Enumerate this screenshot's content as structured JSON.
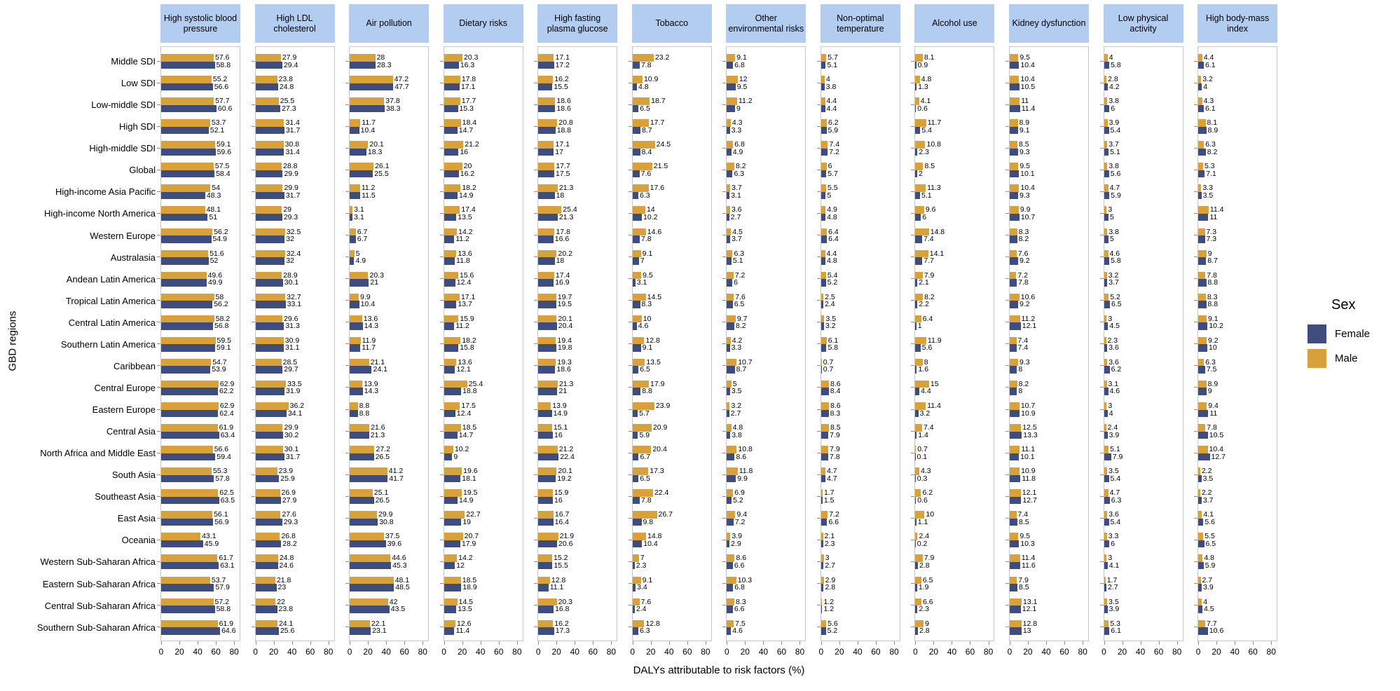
{
  "y_axis_label": "GBD regions",
  "x_axis_label": "DALYs attributable to risk factors (%)",
  "x_ticks": [
    0,
    20,
    40,
    60,
    80
  ],
  "legend": {
    "title": "Sex",
    "items": [
      {
        "label": "Female",
        "color": "#3E4D7D"
      },
      {
        "label": "Male",
        "color": "#D8A13C"
      }
    ]
  },
  "colors": {
    "male": "#D8A13C",
    "female": "#3E4D7D",
    "header_bg": "#B3CDF1",
    "panel_border": "#c6c6c6"
  },
  "chart_data": {
    "type": "bar",
    "orientation": "horizontal",
    "grouping": "grouped",
    "legend_position": "right",
    "xlim": [
      0,
      86
    ],
    "x_ticks": [
      0,
      20,
      40,
      60,
      80
    ],
    "categories": [
      "Middle SDI",
      "Low SDI",
      "Low-middle SDI",
      "High SDI",
      "High-middle SDI",
      "Global",
      "High-income Asia Pacific",
      "High-income North America",
      "Western Europe",
      "Australasia",
      "Andean Latin America",
      "Tropical Latin America",
      "Central Latin America",
      "Southern Latin America",
      "Caribbean",
      "Central Europe",
      "Eastern Europe",
      "Central Asia",
      "North Africa and Middle East",
      "South Asia",
      "Southeast Asia",
      "East Asia",
      "Oceania",
      "Western Sub-Saharan Africa",
      "Eastern Sub-Saharan Africa",
      "Central Sub-Saharan Africa",
      "Southern Sub-Saharan Africa"
    ],
    "panels": [
      {
        "risk": "High systolic blood pressure",
        "male": [
          57.6,
          55.2,
          57.7,
          53.7,
          59.1,
          57.5,
          54,
          48.1,
          56.2,
          51.6,
          49.6,
          58,
          58.2,
          59.5,
          54.7,
          62.9,
          62.9,
          61.9,
          56.6,
          55.3,
          62.5,
          56.1,
          43.1,
          61.7,
          53.7,
          57.2,
          61.9
        ],
        "female": [
          58.8,
          56.6,
          60.6,
          52.1,
          59.6,
          58.4,
          48.3,
          51,
          54.9,
          52,
          49.9,
          56.2,
          56.8,
          59.1,
          53.9,
          62.2,
          62.4,
          63.4,
          59.4,
          57.8,
          63.5,
          56.9,
          45.9,
          63.1,
          57.9,
          58.8,
          64.6
        ]
      },
      {
        "risk": "High LDL cholesterol",
        "male": [
          27.9,
          23.8,
          25.5,
          31.4,
          30.8,
          28.8,
          29.9,
          29,
          32.5,
          32.4,
          28.9,
          32.7,
          29.6,
          30.9,
          28.5,
          33.5,
          36.2,
          29.9,
          30.1,
          23.9,
          26.9,
          27.6,
          26.8,
          24.8,
          21.8,
          22,
          24.1
        ],
        "female": [
          29.4,
          24.8,
          27.3,
          31.7,
          31.4,
          29.9,
          31.7,
          29.3,
          32,
          32,
          30.1,
          33.1,
          31.3,
          31.1,
          29.7,
          31.9,
          34.1,
          30.2,
          31.7,
          25.9,
          27.9,
          29.3,
          28.2,
          24.6,
          23,
          23.8,
          25.6
        ]
      },
      {
        "risk": "Air pollution",
        "male": [
          28,
          47.2,
          37.8,
          11.7,
          20.1,
          26.1,
          11.2,
          3.1,
          6.7,
          5,
          20.3,
          9.9,
          13.6,
          11.9,
          21.1,
          13.9,
          8.8,
          21.6,
          27.2,
          41.2,
          25.1,
          29.9,
          37.5,
          44.6,
          48.1,
          42,
          22.1
        ],
        "female": [
          28.3,
          47.7,
          38.3,
          10.4,
          18.3,
          25.5,
          11.5,
          3.1,
          6.7,
          4.9,
          21,
          10.4,
          14.3,
          11.7,
          24.1,
          14.3,
          8.8,
          21.3,
          26.5,
          41.7,
          26.5,
          30.8,
          39.6,
          45.3,
          48.5,
          43.5,
          23.1
        ]
      },
      {
        "risk": "Dietary risks",
        "male": [
          20.3,
          17.8,
          17.7,
          18.4,
          21.2,
          20,
          18.2,
          17.4,
          14.2,
          13.6,
          15.6,
          17.1,
          15.9,
          18.2,
          13.6,
          25.4,
          17.5,
          18.5,
          10.2,
          19.6,
          19.5,
          22.7,
          20.7,
          14.2,
          18.5,
          14.5,
          12.6
        ],
        "female": [
          16.3,
          17.1,
          15.3,
          14.7,
          16,
          16.2,
          14.9,
          13.5,
          11.2,
          11.8,
          12.4,
          13.7,
          11.2,
          15.8,
          12.1,
          18.8,
          12.4,
          14.7,
          9,
          18.1,
          14.9,
          19,
          17.9,
          12,
          18.9,
          13.5,
          11.4
        ]
      },
      {
        "risk": "High fasting plasma glucose",
        "male": [
          17.1,
          16.2,
          18.6,
          20.8,
          17.1,
          17.7,
          21.3,
          25.4,
          17.8,
          20.2,
          17.4,
          19.7,
          20.1,
          19.4,
          19.3,
          21.3,
          13.9,
          15.1,
          21.2,
          20.1,
          15.9,
          16.7,
          21.9,
          15.2,
          12.8,
          20.3,
          16.2
        ],
        "female": [
          17.2,
          15.5,
          18.6,
          18.8,
          17,
          17.5,
          18,
          21.3,
          16.6,
          18,
          16.9,
          19.5,
          20.4,
          19.8,
          18.6,
          21,
          14.9,
          16,
          22.4,
          19.2,
          16,
          16.4,
          20.6,
          15.5,
          11.1,
          16.8,
          17.3
        ]
      },
      {
        "risk": "Tobacco",
        "male": [
          23.2,
          10.9,
          18.7,
          17.7,
          24.5,
          21.5,
          17.6,
          14,
          14.6,
          9.1,
          9.5,
          14.5,
          10,
          12.8,
          13.5,
          17.9,
          23.9,
          20.9,
          20.4,
          17.3,
          22.4,
          26.7,
          14.8,
          7,
          9.1,
          7.6,
          12.8
        ],
        "female": [
          7.8,
          4.8,
          6.5,
          8.7,
          8.4,
          7.6,
          6.3,
          10.2,
          7.8,
          7,
          3.1,
          8.3,
          4.6,
          9.1,
          6.5,
          8.8,
          5.7,
          5.9,
          6.7,
          6.5,
          7.8,
          9.8,
          10.4,
          2.3,
          3.4,
          2.4,
          6.3
        ]
      },
      {
        "risk": "Other environmental risks",
        "male": [
          9.1,
          12,
          11.2,
          4.3,
          6.8,
          8.2,
          3.7,
          3.6,
          4.5,
          6.3,
          7.2,
          7.6,
          9.7,
          4.2,
          10.7,
          5,
          3.2,
          4.8,
          10.8,
          11.8,
          6.9,
          9.4,
          3.9,
          8.6,
          10.3,
          8.3,
          7.5
        ],
        "female": [
          6.8,
          9.5,
          9,
          3.3,
          4.9,
          6.3,
          3.1,
          2.7,
          3.7,
          5.1,
          6,
          6.5,
          8.2,
          3.3,
          8.7,
          3.5,
          2.7,
          3.8,
          8.6,
          9.9,
          5.2,
          7.2,
          2.9,
          6.6,
          6.8,
          6.6,
          4.6
        ]
      },
      {
        "risk": "Non-optimal temperature",
        "male": [
          5.7,
          4,
          4.4,
          6.2,
          7.4,
          6,
          5.5,
          4.9,
          6.4,
          4.4,
          5.4,
          2.5,
          3.5,
          6.1,
          0.7,
          8.6,
          8.6,
          8.5,
          7.9,
          4.7,
          1.7,
          7.2,
          2.1,
          3,
          2.9,
          1.2,
          5.6
        ],
        "female": [
          5.1,
          3.8,
          4.4,
          5.9,
          7.2,
          5.7,
          5,
          4.8,
          6.4,
          4.8,
          5.2,
          2.4,
          3.2,
          5.8,
          0.7,
          8.4,
          8.3,
          7.9,
          7.8,
          4.7,
          1.5,
          6.6,
          2.3,
          2.7,
          2.8,
          1.2,
          5.2
        ]
      },
      {
        "risk": "Alcohol use",
        "male": [
          8.1,
          4.8,
          4.1,
          11.7,
          10.8,
          8.5,
          11.3,
          9.6,
          14.8,
          14.1,
          7.9,
          8.2,
          6.4,
          11.9,
          8,
          15,
          11.4,
          7.4,
          0.7,
          4.3,
          6.2,
          10,
          2.4,
          7.9,
          6.5,
          6.6,
          9
        ],
        "female": [
          0.9,
          1.3,
          0.6,
          5.4,
          2.3,
          2,
          5.1,
          6,
          7.4,
          7.7,
          2.1,
          2.2,
          1,
          5.6,
          1.6,
          4.4,
          3.2,
          1.4,
          0.1,
          0.3,
          0.6,
          1.1,
          0.2,
          2.8,
          1.9,
          2.3,
          2.8
        ]
      },
      {
        "risk": "Kidney dysfunction",
        "male": [
          9.5,
          10.4,
          11,
          8.9,
          8.5,
          9.5,
          10.4,
          9.9,
          8.3,
          7.6,
          7.2,
          10.6,
          11.2,
          7.4,
          9.3,
          8.2,
          10.7,
          12.5,
          11.1,
          10.9,
          12.1,
          7.4,
          9.5,
          11.4,
          7.9,
          13.1,
          12.8
        ],
        "female": [
          10.4,
          10.5,
          11.4,
          9.1,
          9.3,
          10.1,
          9.3,
          10.7,
          8.2,
          9.2,
          7.8,
          9.2,
          12.1,
          7.4,
          8,
          8,
          10.9,
          13.3,
          10.1,
          11.8,
          12.7,
          8.5,
          10.3,
          11.6,
          8.5,
          12.1,
          13
        ]
      },
      {
        "risk": "Low physical activity",
        "male": [
          4,
          2.8,
          3.8,
          3.9,
          3.7,
          3.8,
          4.7,
          3,
          3.8,
          4.6,
          3.2,
          5.2,
          3,
          2.3,
          3.6,
          3.1,
          3,
          2.4,
          5.1,
          3.5,
          4.7,
          3.6,
          3.3,
          3,
          1.7,
          3.5,
          5.3
        ],
        "female": [
          5.8,
          4.2,
          6,
          5.4,
          5.1,
          5.6,
          5.9,
          5,
          5,
          5.8,
          3.7,
          6.5,
          4.5,
          3.6,
          6.2,
          4.6,
          4,
          3.9,
          7.9,
          5.4,
          6.3,
          5.4,
          6,
          4.1,
          2.7,
          3.9,
          6.1
        ]
      },
      {
        "risk": "High body-mass index",
        "male": [
          4.4,
          3.2,
          4.3,
          8.1,
          6.3,
          5.3,
          3.3,
          11.4,
          7.3,
          9,
          7.8,
          8.3,
          9.1,
          9.2,
          6.3,
          8.9,
          9.4,
          7.8,
          10.4,
          2.2,
          2.2,
          4.1,
          5.5,
          4.8,
          2.7,
          4,
          7.7
        ],
        "female": [
          6.1,
          4,
          6.1,
          8.9,
          8.2,
          7.1,
          3.5,
          11,
          7.3,
          8.7,
          8.8,
          8.8,
          10.2,
          10,
          7.5,
          9,
          11,
          10.5,
          12.7,
          3.5,
          3.7,
          5.6,
          6.5,
          5.9,
          3.9,
          4.5,
          10.6
        ]
      }
    ]
  }
}
